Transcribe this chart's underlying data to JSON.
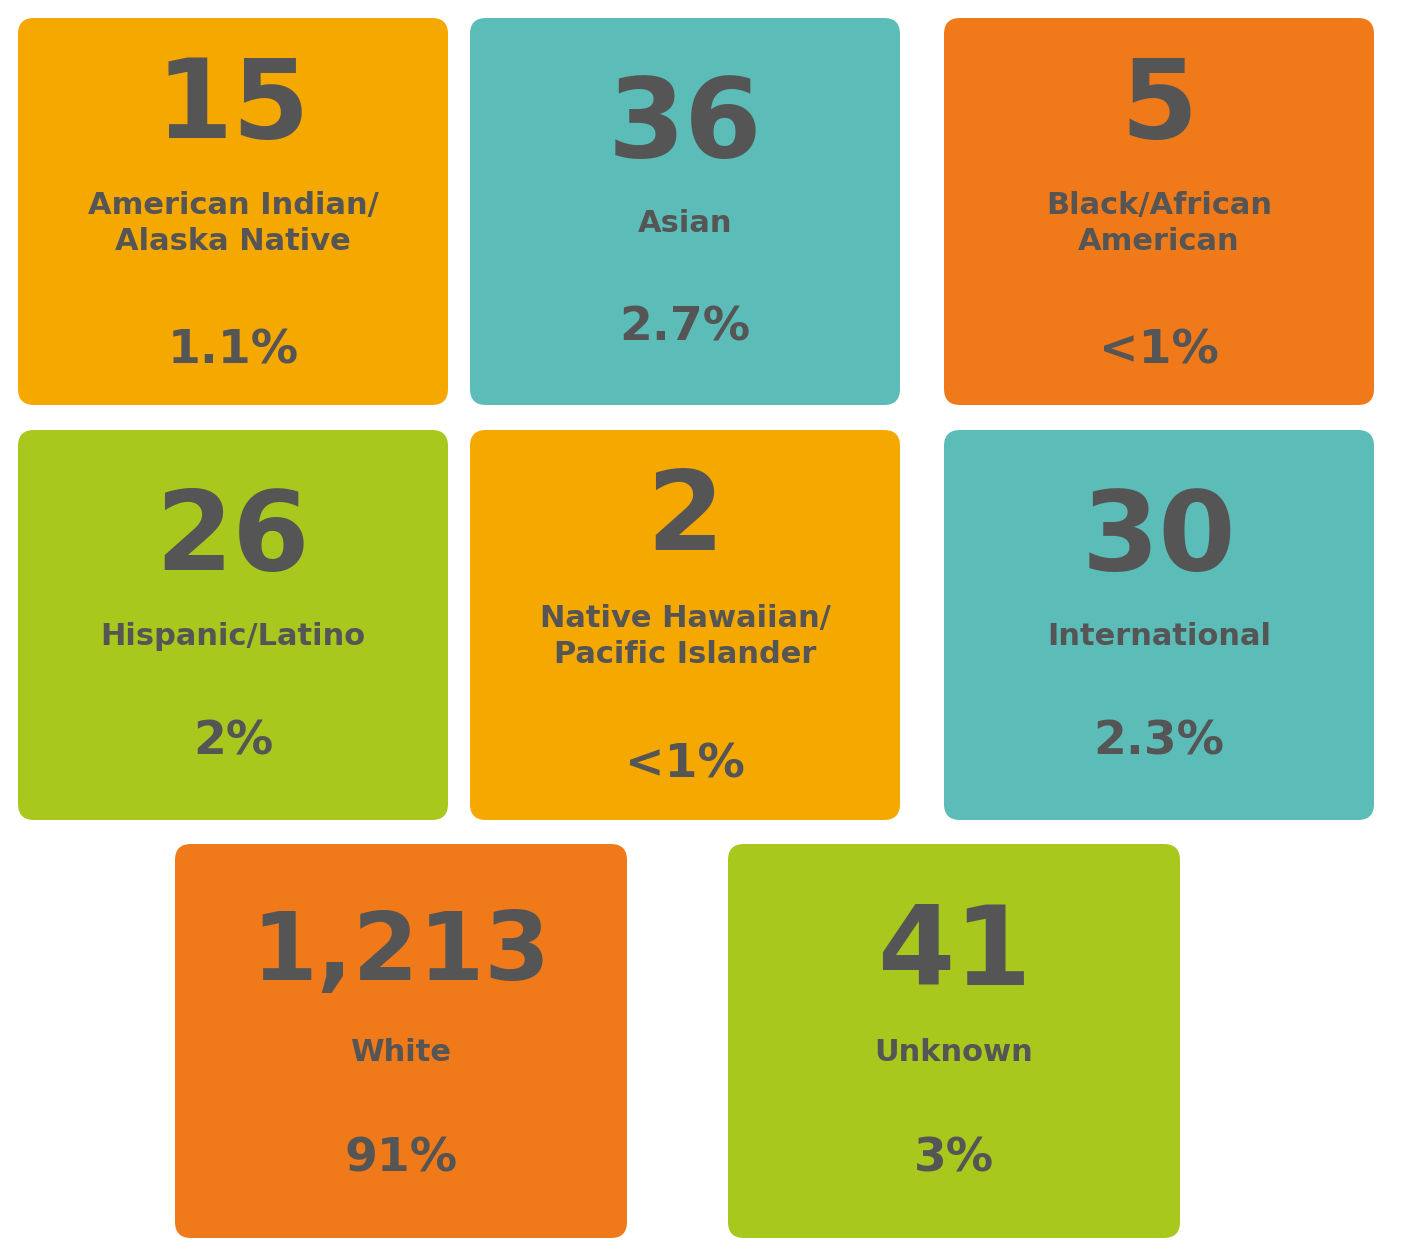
{
  "boxes": [
    {
      "row": 0,
      "col": 0,
      "color": "#F5A800",
      "number": "15",
      "label": "American Indian/\nAlaska Native",
      "percent": "1.1%",
      "num_fontsize": 80,
      "label_fontsize": 22,
      "pct_fontsize": 34
    },
    {
      "row": 0,
      "col": 1,
      "color": "#5BBCB8",
      "number": "36",
      "label": "Asian",
      "percent": "2.7%",
      "num_fontsize": 80,
      "label_fontsize": 22,
      "pct_fontsize": 34
    },
    {
      "row": 0,
      "col": 2,
      "color": "#F07A1A",
      "number": "5",
      "label": "Black/African\nAmerican",
      "percent": "<1%",
      "num_fontsize": 80,
      "label_fontsize": 22,
      "pct_fontsize": 34
    },
    {
      "row": 1,
      "col": 0,
      "color": "#A8C81E",
      "number": "26",
      "label": "Hispanic/Latino",
      "percent": "2%",
      "num_fontsize": 80,
      "label_fontsize": 22,
      "pct_fontsize": 34
    },
    {
      "row": 1,
      "col": 1,
      "color": "#F5A800",
      "number": "2",
      "label": "Native Hawaiian/\nPacific Islander",
      "percent": "<1%",
      "num_fontsize": 80,
      "label_fontsize": 22,
      "pct_fontsize": 34
    },
    {
      "row": 1,
      "col": 2,
      "color": "#5BBCB8",
      "number": "30",
      "label": "International",
      "percent": "2.3%",
      "num_fontsize": 80,
      "label_fontsize": 22,
      "pct_fontsize": 34
    },
    {
      "row": 2,
      "col": 0,
      "color": "#F07A1A",
      "number": "1,213",
      "label": "White",
      "percent": "91%",
      "num_fontsize": 68,
      "label_fontsize": 22,
      "pct_fontsize": 34
    },
    {
      "row": 2,
      "col": 1,
      "color": "#A8C81E",
      "number": "41",
      "label": "Unknown",
      "percent": "3%",
      "num_fontsize": 80,
      "label_fontsize": 22,
      "pct_fontsize": 34
    }
  ],
  "text_color": "#555555",
  "background_color": "#FFFFFF",
  "fig_width": 14.04,
  "fig_height": 12.54,
  "dpi": 100
}
